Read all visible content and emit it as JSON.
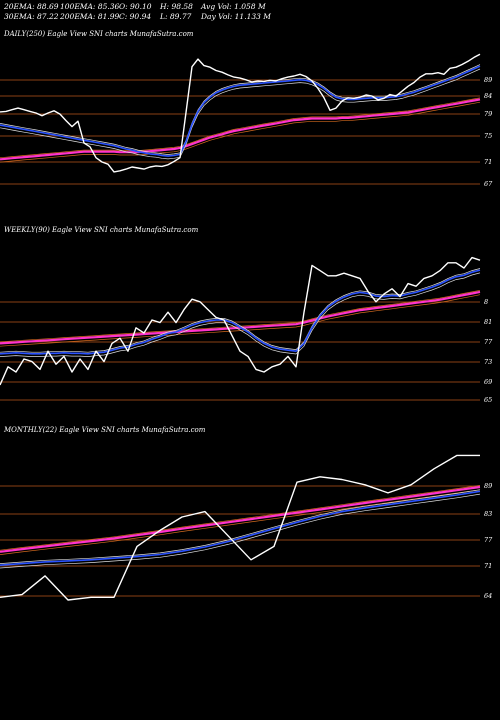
{
  "header": {
    "row1": [
      "20EMA: 88.69",
      "100EMA: 85.36",
      "O: 90.10",
      "H: 98.58",
      "Avg Vol: 1.058 M"
    ],
    "row2": [
      "30EMA: 87.22",
      "200EMA: 81.99",
      "C: 90.94",
      "L: 89.77",
      "Day Vol: 11.133 M"
    ]
  },
  "colors": {
    "background": "#000000",
    "price": "#ffffff",
    "ema_short": "#2a52ff",
    "ema_long": "#ff33cc",
    "sma": "#d2691e",
    "grid": "#b8561a"
  },
  "chart_data": [
    {
      "type": "line",
      "title": "DAILY(250) Eagle  View  SNI charts MunafaSutra.com",
      "ylim": [
        63,
        92
      ],
      "yticks": [
        "89",
        "84",
        "79",
        "75",
        "71",
        "67"
      ],
      "x": [
        0,
        6,
        12,
        18,
        24,
        30,
        36,
        42,
        48,
        54,
        60,
        66,
        72,
        78,
        84,
        90,
        96,
        102,
        108,
        114,
        120,
        126,
        132,
        138,
        144,
        150,
        156,
        162,
        168,
        174,
        180,
        186,
        192,
        198,
        204,
        210,
        216,
        222,
        228,
        234,
        240,
        246,
        252,
        258,
        264,
        270,
        276,
        282,
        288,
        294,
        300,
        306,
        312,
        318,
        324,
        330,
        336,
        342,
        348,
        354,
        360,
        366,
        372,
        378,
        384,
        390,
        396,
        402,
        408,
        414,
        420,
        426,
        432,
        438,
        444,
        450,
        456,
        462,
        468,
        474,
        480
      ],
      "series": [
        {
          "values": [
            79.9,
            80.0,
            80.3,
            80.6,
            80.3,
            80.0,
            79.7,
            79.2,
            79.7,
            80.1,
            79.5,
            78.3,
            77.2,
            78.2,
            74.2,
            73.5,
            71.5,
            70.7,
            70.3,
            68.9,
            69.1,
            69.4,
            69.8,
            69.6,
            69.4,
            69.8,
            70.0,
            69.9,
            70.2,
            70.8,
            71.5,
            79.8,
            88.2,
            89.6,
            88.4,
            88.1,
            87.5,
            87.2,
            86.7,
            86.3,
            86.1,
            85.8,
            85.4,
            85.6,
            85.5,
            85.7,
            85.6,
            86.0,
            86.3,
            86.5,
            86.8,
            86.4,
            85.6,
            84.2,
            82.5,
            80.2,
            80.6,
            81.9,
            82.5,
            82.4,
            82.6,
            83.0,
            82.8,
            82.1,
            82.4,
            83.1,
            82.8,
            83.7,
            84.6,
            85.3,
            86.3,
            86.9,
            86.9,
            87.1,
            86.8,
            87.9,
            88.1,
            88.6,
            89.2,
            89.9,
            90.5
          ]
        },
        {
          "values": [
            77.5,
            77.3,
            77.1,
            76.9,
            76.7,
            76.5,
            76.3,
            76.1,
            75.9,
            75.7,
            75.5,
            75.3,
            75.1,
            74.9,
            74.7,
            74.5,
            74.3,
            74.1,
            73.9,
            73.7,
            73.4,
            73.1,
            72.9,
            72.6,
            72.4,
            72.2,
            72.1,
            71.9,
            71.8,
            71.9,
            72.1,
            74.4,
            77.6,
            80.0,
            81.6,
            82.6,
            83.4,
            83.9,
            84.3,
            84.6,
            84.8,
            84.9,
            85.0,
            85.1,
            85.2,
            85.3,
            85.4,
            85.5,
            85.6,
            85.7,
            85.8,
            85.7,
            85.4,
            84.9,
            84.2,
            83.3,
            82.6,
            82.3,
            82.2,
            82.2,
            82.3,
            82.4,
            82.5,
            82.5,
            82.5,
            82.6,
            82.7,
            82.9,
            83.2,
            83.5,
            83.9,
            84.3,
            84.7,
            85.1,
            85.5,
            85.9,
            86.3,
            86.8,
            87.3,
            87.8,
            88.3
          ]
        },
        {
          "values": [
            71.2,
            71.3,
            71.4,
            71.5,
            71.6,
            71.7,
            71.8,
            71.9,
            72.0,
            72.1,
            72.2,
            72.3,
            72.4,
            72.5,
            72.6,
            72.6,
            72.6,
            72.6,
            72.6,
            72.6,
            72.5,
            72.5,
            72.5,
            72.5,
            72.6,
            72.7,
            72.8,
            72.9,
            73.0,
            73.1,
            73.3,
            73.6,
            74.0,
            74.4,
            74.8,
            75.2,
            75.5,
            75.8,
            76.1,
            76.4,
            76.6,
            76.8,
            77.0,
            77.2,
            77.4,
            77.6,
            77.8,
            78.0,
            78.2,
            78.4,
            78.5,
            78.6,
            78.7,
            78.7,
            78.7,
            78.7,
            78.7,
            78.8,
            78.8,
            78.9,
            79.0,
            79.1,
            79.2,
            79.3,
            79.4,
            79.5,
            79.6,
            79.7,
            79.8,
            80.0,
            80.2,
            80.4,
            80.6,
            80.8,
            81.0,
            81.2,
            81.4,
            81.6,
            81.8,
            82.0,
            82.2
          ]
        }
      ]
    },
    {
      "type": "line",
      "title": "WEEKLY(90) Eagle  View  SNI charts MunafaSutra.com",
      "ylim": [
        61,
        91
      ],
      "yticks": [
        "8",
        "81",
        "77",
        "73",
        "69",
        "65"
      ],
      "x": [
        0,
        8,
        16,
        24,
        32,
        40,
        48,
        56,
        64,
        72,
        80,
        88,
        96,
        104,
        112,
        120,
        128,
        136,
        144,
        152,
        160,
        168,
        176,
        184,
        192,
        200,
        208,
        216,
        224,
        232,
        240,
        248,
        256,
        264,
        272,
        280,
        288,
        296,
        304,
        312,
        320,
        328,
        336,
        344,
        352,
        360,
        368,
        376,
        384,
        392,
        400,
        408,
        416,
        424,
        432,
        440,
        448,
        456,
        464,
        472,
        480
      ],
      "series": [
        {
          "values": [
            63.5,
            67.0,
            66.0,
            68.5,
            68.0,
            66.5,
            70.0,
            67.5,
            69.0,
            66.0,
            68.5,
            66.5,
            70.0,
            68.0,
            71.5,
            72.5,
            70.0,
            74.5,
            73.5,
            76.0,
            75.5,
            77.5,
            75.5,
            78.0,
            80.0,
            79.5,
            78.0,
            76.5,
            76.0,
            73.0,
            70.0,
            69.0,
            66.5,
            66.0,
            67.0,
            67.5,
            69.0,
            67.0,
            77.5,
            86.5,
            85.5,
            84.5,
            84.5,
            85.0,
            84.5,
            84.0,
            81.5,
            79.5,
            81.0,
            82.0,
            80.5,
            83.0,
            82.5,
            84.0,
            84.5,
            85.5,
            87.0,
            87.0,
            86.0,
            88.0,
            87.5
          ]
        },
        {
          "values": [
            69.5,
            69.6,
            69.7,
            69.6,
            69.5,
            69.5,
            69.6,
            69.6,
            69.7,
            69.6,
            69.6,
            69.5,
            69.7,
            69.8,
            70.2,
            70.6,
            70.8,
            71.3,
            71.7,
            72.3,
            72.8,
            73.4,
            73.7,
            74.3,
            75.0,
            75.5,
            75.8,
            76.0,
            76.0,
            75.5,
            74.6,
            73.7,
            72.5,
            71.5,
            70.8,
            70.4,
            70.2,
            70.0,
            71.5,
            74.5,
            76.8,
            78.5,
            79.6,
            80.4,
            81.0,
            81.3,
            81.1,
            80.6,
            80.5,
            80.7,
            80.6,
            81.0,
            81.3,
            81.8,
            82.3,
            82.9,
            83.7,
            84.3,
            84.6,
            85.2,
            85.6
          ]
        },
        {
          "values": [
            71.5,
            71.6,
            71.7,
            71.8,
            71.9,
            72.0,
            72.1,
            72.2,
            72.3,
            72.4,
            72.5,
            72.6,
            72.7,
            72.8,
            72.9,
            73.0,
            73.1,
            73.2,
            73.3,
            73.4,
            73.5,
            73.6,
            73.7,
            73.8,
            73.9,
            74.0,
            74.1,
            74.2,
            74.3,
            74.4,
            74.5,
            74.6,
            74.7,
            74.8,
            74.9,
            75.0,
            75.1,
            75.2,
            75.5,
            75.9,
            76.3,
            76.7,
            77.0,
            77.3,
            77.6,
            77.9,
            78.1,
            78.3,
            78.5,
            78.7,
            78.9,
            79.1,
            79.3,
            79.5,
            79.7,
            79.9,
            80.2,
            80.5,
            80.8,
            81.1,
            81.4
          ]
        }
      ]
    },
    {
      "type": "line",
      "title": "MONTHLY(22) Eagle  View  SNI charts MunafaSutra.com",
      "ylim": [
        61,
        92
      ],
      "yticks": [
        "89",
        "83",
        "77",
        "71",
        "64"
      ],
      "x": [
        0,
        22,
        45,
        68,
        91,
        114,
        137,
        160,
        182,
        205,
        228,
        251,
        274,
        297,
        320,
        342,
        365,
        388,
        411,
        434,
        457,
        480
      ],
      "series": [
        {
          "values": [
            63.0,
            63.5,
            67.0,
            62.5,
            63.0,
            63.0,
            72.5,
            75.5,
            78.0,
            79.0,
            74.5,
            70.0,
            72.5,
            84.5,
            85.5,
            85.0,
            84.0,
            82.5,
            84.0,
            87.0,
            89.5,
            89.5
          ]
        },
        {
          "values": [
            69.0,
            69.3,
            69.6,
            69.8,
            70.0,
            70.3,
            70.6,
            71.0,
            71.6,
            72.4,
            73.4,
            74.6,
            75.8,
            77.0,
            78.1,
            79.0,
            79.7,
            80.3,
            80.9,
            81.5,
            82.1,
            82.8
          ]
        },
        {
          "values": [
            71.5,
            72.0,
            72.5,
            73.0,
            73.5,
            74.0,
            74.6,
            75.2,
            75.8,
            76.4,
            77.0,
            77.6,
            78.2,
            78.8,
            79.4,
            80.0,
            80.6,
            81.2,
            81.8,
            82.4,
            83.0,
            83.6
          ]
        }
      ]
    }
  ]
}
